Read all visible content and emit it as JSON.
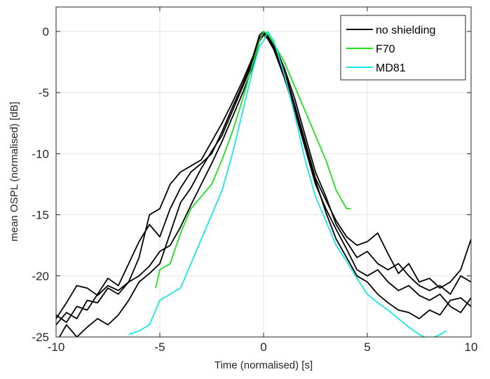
{
  "chart_data": {
    "type": "line",
    "title": "",
    "xlabel": "Time (normalised) [s]",
    "ylabel": "mean OSPL (normalised) [dB]",
    "xlim": [
      -10,
      10
    ],
    "ylim": [
      -25,
      2
    ],
    "xticks": [
      -10,
      -5,
      0,
      5,
      10
    ],
    "yticks": [
      0,
      -5,
      -10,
      -15,
      -20,
      -25
    ],
    "xtick_labels": [
      "-10",
      "-5",
      "0",
      "5",
      "10"
    ],
    "ytick_labels": [
      "0",
      "-5",
      "-10",
      "-15",
      "-20",
      "-25"
    ],
    "grid": true,
    "legend_position": "top-right",
    "legend": [
      {
        "label": "no shielding",
        "color": "#000000"
      },
      {
        "label": "F70",
        "color": "#1fe01f"
      },
      {
        "label": "MD81",
        "color": "#19e6e6"
      }
    ],
    "series": [
      {
        "group": "no shielding",
        "color": "#000000",
        "points": [
          [
            -10,
            -23.5
          ],
          [
            -9.5,
            -22.2
          ],
          [
            -9,
            -20.8
          ],
          [
            -8.5,
            -21.0
          ],
          [
            -8,
            -21.6
          ],
          [
            -7.5,
            -20.8
          ],
          [
            -7,
            -21.2
          ],
          [
            -6.5,
            -20.5
          ],
          [
            -6,
            -20.0
          ],
          [
            -5.5,
            -19.2
          ],
          [
            -5,
            -18.0
          ],
          [
            -4.5,
            -17.5
          ],
          [
            -4,
            -16.0
          ],
          [
            -3.5,
            -14.2
          ],
          [
            -3,
            -12.5
          ],
          [
            -2.5,
            -10.8
          ],
          [
            -2,
            -9.0
          ],
          [
            -1.5,
            -7.0
          ],
          [
            -1,
            -5.0
          ],
          [
            -0.5,
            -2.8
          ],
          [
            -0.2,
            -0.8
          ],
          [
            0,
            -0.3
          ],
          [
            0.2,
            -0.6
          ],
          [
            0.5,
            -1.5
          ],
          [
            1,
            -3.8
          ],
          [
            1.5,
            -6.5
          ],
          [
            2,
            -9.5
          ],
          [
            2.5,
            -12.5
          ],
          [
            3,
            -14.5
          ],
          [
            3.5,
            -16.2
          ],
          [
            4,
            -17.8
          ],
          [
            4.5,
            -19.5
          ],
          [
            5,
            -20.0
          ],
          [
            5.5,
            -19.5
          ],
          [
            6,
            -20.5
          ],
          [
            6.5,
            -21.2
          ],
          [
            7,
            -20.8
          ],
          [
            7.5,
            -21.6
          ],
          [
            8,
            -22.0
          ],
          [
            8.5,
            -21.5
          ],
          [
            9,
            -22.5
          ],
          [
            9.5,
            -23.0
          ],
          [
            10,
            -21.8
          ]
        ]
      },
      {
        "group": "no shielding",
        "color": "#000000",
        "points": [
          [
            -10,
            -23.2
          ],
          [
            -9.5,
            -23.8
          ],
          [
            -9,
            -22.5
          ],
          [
            -8.5,
            -22.8
          ],
          [
            -8,
            -21.5
          ],
          [
            -7.5,
            -20.2
          ],
          [
            -7,
            -20.8
          ],
          [
            -6.5,
            -19.0
          ],
          [
            -6,
            -17.2
          ],
          [
            -5.5,
            -15.8
          ],
          [
            -5,
            -16.8
          ],
          [
            -4.5,
            -14.5
          ],
          [
            -4,
            -12.8
          ],
          [
            -3.5,
            -11.5
          ],
          [
            -3,
            -10.8
          ],
          [
            -2.5,
            -10.0
          ],
          [
            -2,
            -8.2
          ],
          [
            -1.5,
            -6.2
          ],
          [
            -1,
            -4.3
          ],
          [
            -0.5,
            -2.2
          ],
          [
            -0.2,
            -0.5
          ],
          [
            0,
            -0.2
          ],
          [
            0.2,
            -0.4
          ],
          [
            0.5,
            -1.2
          ],
          [
            1,
            -3.2
          ],
          [
            1.5,
            -6.0
          ],
          [
            2,
            -9.0
          ],
          [
            2.5,
            -12.0
          ],
          [
            3,
            -13.8
          ],
          [
            3.5,
            -15.5
          ],
          [
            4,
            -16.8
          ],
          [
            4.5,
            -17.5
          ],
          [
            5,
            -17.2
          ],
          [
            5.5,
            -16.5
          ],
          [
            6,
            -18.2
          ],
          [
            6.5,
            -19.8
          ],
          [
            7,
            -19.0
          ],
          [
            7.5,
            -20.5
          ],
          [
            8,
            -20.2
          ],
          [
            8.5,
            -21.0
          ],
          [
            9,
            -20.5
          ],
          [
            9.5,
            -19.5
          ],
          [
            10,
            -17.0
          ]
        ]
      },
      {
        "group": "no shielding",
        "color": "#000000",
        "points": [
          [
            -10,
            -24.0
          ],
          [
            -9.5,
            -23.0
          ],
          [
            -9,
            -23.5
          ],
          [
            -8.5,
            -22.0
          ],
          [
            -8,
            -22.2
          ],
          [
            -7.5,
            -21.0
          ],
          [
            -7,
            -21.5
          ],
          [
            -6.5,
            -20.5
          ],
          [
            -6,
            -18.5
          ],
          [
            -5.5,
            -15.0
          ],
          [
            -5,
            -14.5
          ],
          [
            -4.5,
            -12.5
          ],
          [
            -4,
            -11.5
          ],
          [
            -3.5,
            -11.0
          ],
          [
            -3,
            -10.5
          ],
          [
            -2.5,
            -9.0
          ],
          [
            -2,
            -7.5
          ],
          [
            -1.5,
            -5.8
          ],
          [
            -1,
            -4.0
          ],
          [
            -0.5,
            -2.0
          ],
          [
            -0.2,
            -0.3
          ],
          [
            0,
            0
          ],
          [
            0.2,
            -0.3
          ],
          [
            0.5,
            -1.0
          ],
          [
            1,
            -3.0
          ],
          [
            1.5,
            -5.5
          ],
          [
            2,
            -8.5
          ],
          [
            2.5,
            -11.5
          ],
          [
            3,
            -13.5
          ],
          [
            3.5,
            -15.8
          ],
          [
            4,
            -17.2
          ],
          [
            4.5,
            -18.5
          ],
          [
            5,
            -18.0
          ],
          [
            5.5,
            -19.0
          ],
          [
            6,
            -19.5
          ],
          [
            6.5,
            -19.0
          ],
          [
            7,
            -20.0
          ],
          [
            7.5,
            -20.8
          ],
          [
            8,
            -21.2
          ],
          [
            8.5,
            -20.8
          ],
          [
            9,
            -21.5
          ],
          [
            9.5,
            -20.0
          ],
          [
            10,
            -20.5
          ]
        ]
      },
      {
        "group": "no shielding",
        "color": "#000000",
        "points": [
          [
            -10,
            -25.5
          ],
          [
            -9.5,
            -24.0
          ],
          [
            -9,
            -25.0
          ],
          [
            -8.5,
            -24.2
          ],
          [
            -8,
            -23.5
          ],
          [
            -7.5,
            -24.0
          ],
          [
            -7,
            -23.2
          ],
          [
            -6.5,
            -22.0
          ],
          [
            -6,
            -20.5
          ],
          [
            -5.5,
            -19.8
          ],
          [
            -5,
            -19.0
          ],
          [
            -4.5,
            -16.5
          ],
          [
            -4,
            -14.0
          ],
          [
            -3.5,
            -12.8
          ],
          [
            -3,
            -11.2
          ],
          [
            -2.5,
            -9.8
          ],
          [
            -2,
            -8.5
          ],
          [
            -1.5,
            -6.5
          ],
          [
            -1,
            -4.5
          ],
          [
            -0.5,
            -2.5
          ],
          [
            -0.2,
            -0.6
          ],
          [
            0,
            -0.1
          ],
          [
            0.2,
            -0.5
          ],
          [
            0.5,
            -1.3
          ],
          [
            1,
            -3.5
          ],
          [
            1.5,
            -6.2
          ],
          [
            2,
            -9.2
          ],
          [
            2.5,
            -12.2
          ],
          [
            3,
            -14.8
          ],
          [
            3.5,
            -17.0
          ],
          [
            4,
            -18.5
          ],
          [
            4.5,
            -20.0
          ],
          [
            5,
            -20.5
          ],
          [
            5.5,
            -21.5
          ],
          [
            6,
            -22.2
          ],
          [
            6.5,
            -22.8
          ],
          [
            7,
            -23.0
          ],
          [
            7.5,
            -23.5
          ],
          [
            8,
            -22.8
          ],
          [
            8.5,
            -23.2
          ],
          [
            9,
            -22.0
          ],
          [
            9.5,
            -21.8
          ],
          [
            10,
            -22.5
          ]
        ]
      },
      {
        "group": "F70",
        "color": "#1fe01f",
        "points": [
          [
            -5.2,
            -21.0
          ],
          [
            -5,
            -19.5
          ],
          [
            -4.5,
            -19.0
          ],
          [
            -4,
            -16.5
          ],
          [
            -3.5,
            -14.5
          ],
          [
            -3,
            -13.5
          ],
          [
            -2.5,
            -12.5
          ],
          [
            -2,
            -10.5
          ],
          [
            -1.5,
            -8.2
          ],
          [
            -1,
            -5.5
          ],
          [
            -0.5,
            -2.5
          ],
          [
            -0.2,
            -0.8
          ],
          [
            0,
            0
          ],
          [
            0.2,
            -0.2
          ],
          [
            0.5,
            -1.0
          ],
          [
            1,
            -2.5
          ],
          [
            1.5,
            -4.5
          ],
          [
            2,
            -6.5
          ],
          [
            2.5,
            -8.5
          ],
          [
            3,
            -10.5
          ],
          [
            3.5,
            -13.0
          ],
          [
            4,
            -14.5
          ],
          [
            4.2,
            -14.5
          ]
        ]
      },
      {
        "group": "MD81",
        "color": "#19e6e6",
        "points": [
          [
            -6.5,
            -24.8
          ],
          [
            -6,
            -24.5
          ],
          [
            -5.5,
            -24.0
          ],
          [
            -5,
            -22.0
          ],
          [
            -4.5,
            -21.5
          ],
          [
            -4,
            -21.0
          ],
          [
            -3.5,
            -19.0
          ],
          [
            -3,
            -17.0
          ],
          [
            -2.5,
            -15.0
          ],
          [
            -2,
            -13.0
          ],
          [
            -1.5,
            -10.0
          ],
          [
            -1,
            -6.5
          ],
          [
            -0.5,
            -3.0
          ],
          [
            -0.2,
            -1.2
          ],
          [
            0,
            -0.8
          ],
          [
            0.2,
            0
          ],
          [
            0.5,
            -0.8
          ],
          [
            1,
            -3.5
          ],
          [
            1.5,
            -6.8
          ],
          [
            2,
            -10.5
          ],
          [
            2.5,
            -13.5
          ],
          [
            3,
            -15.5
          ],
          [
            3.5,
            -17.5
          ],
          [
            4,
            -18.8
          ],
          [
            4.5,
            -20.2
          ],
          [
            5,
            -21.5
          ],
          [
            5.5,
            -22.2
          ],
          [
            6,
            -22.8
          ],
          [
            6.5,
            -23.5
          ],
          [
            7,
            -24.2
          ],
          [
            7.5,
            -24.8
          ],
          [
            8,
            -25.2
          ],
          [
            8.5,
            -24.8
          ],
          [
            8.8,
            -24.5
          ]
        ]
      }
    ]
  }
}
